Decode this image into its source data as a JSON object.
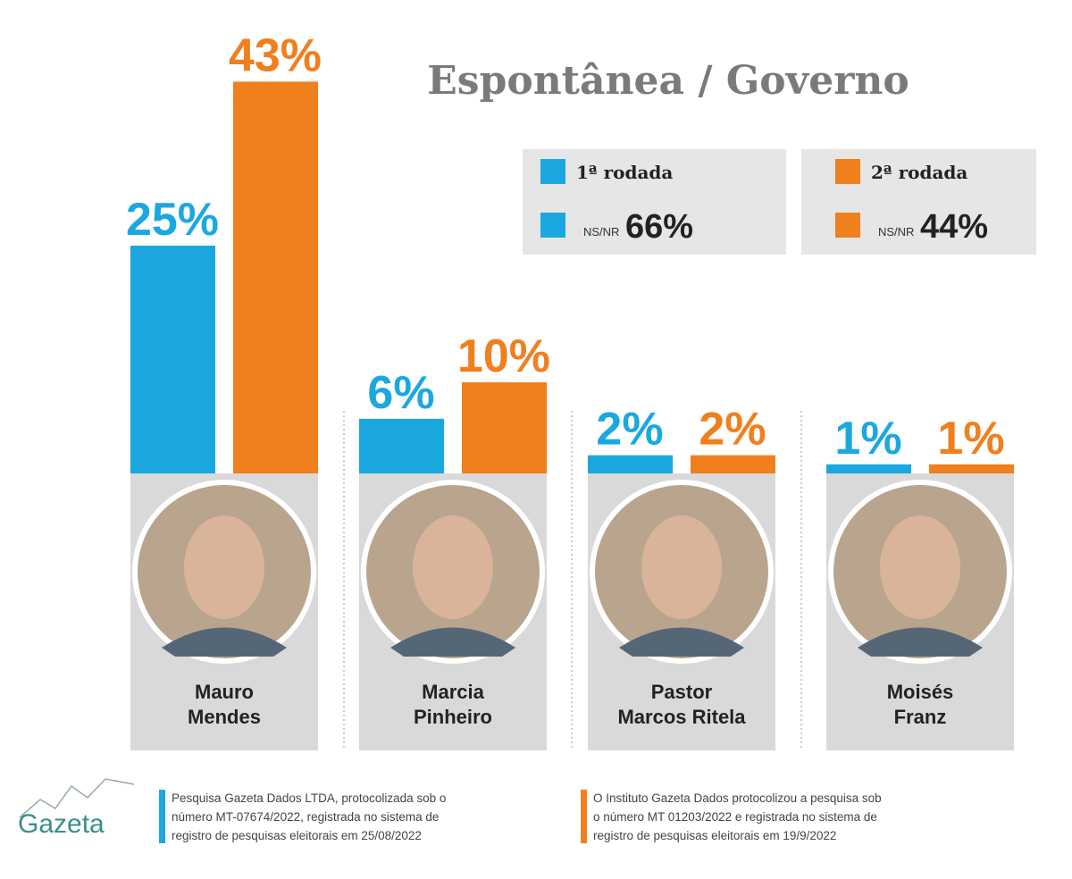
{
  "chart_data": {
    "type": "bar",
    "title": "Espontânea / Governo",
    "categories": [
      "Mauro\nMendes",
      "Marcia\nPinheiro",
      "Pastor\nMarcos Ritela",
      "Moisés\nFranz"
    ],
    "series": [
      {
        "name": "1ª rodada",
        "color": "#1ba8e0",
        "values": [
          25,
          6,
          2,
          1
        ],
        "value_labels": [
          "25%",
          "6%",
          "2%",
          "1%"
        ],
        "nsnr_label": "NS/NR",
        "nsnr": "66%"
      },
      {
        "name": "2ª rodada",
        "color": "#f07f1e",
        "values": [
          43,
          10,
          2,
          1
        ],
        "value_labels": [
          "43%",
          "10%",
          "2%",
          "1%"
        ],
        "nsnr_label": "NS/NR",
        "nsnr": "44%"
      }
    ],
    "logo": "Gazeta",
    "notes": [
      "Pesquisa Gazeta Dados LTDA, protocolizada sob o\nnúmero MT-07674/2022, registrada no sistema de\nregistro de pesquisas eleitorais em 25/08/2022",
      "O Instituto Gazeta Dados protocolizou a pesquisa sob\no número MT 01203/2022 e registrada no sistema de\nregistro de pesquisas eleitorais em 19/9/2022"
    ]
  }
}
